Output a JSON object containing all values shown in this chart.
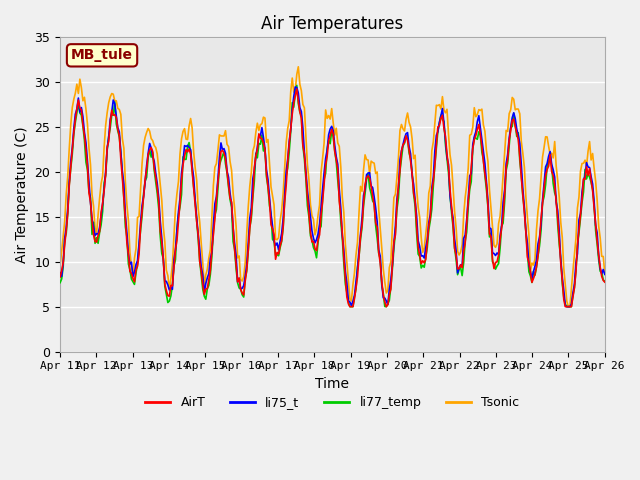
{
  "title": "Air Temperatures",
  "xlabel": "Time",
  "ylabel": "Air Temperature (C)",
  "ylim": [
    0,
    35
  ],
  "yticks": [
    0,
    5,
    10,
    15,
    20,
    25,
    30,
    35
  ],
  "x_tick_labels": [
    "Apr 11",
    "Apr 12",
    "Apr 13",
    "Apr 14",
    "Apr 15",
    "Apr 16",
    "Apr 17",
    "Apr 18",
    "Apr 19",
    "Apr 20",
    "Apr 21",
    "Apr 22",
    "Apr 23",
    "Apr 24",
    "Apr 25",
    "Apr 26"
  ],
  "series_colors": {
    "AirT": "#ff0000",
    "li75_t": "#0000ff",
    "li77_temp": "#00cc00",
    "Tsonic": "#ffa500"
  },
  "annotation_text": "MB_tule",
  "annotation_color": "#8b0000",
  "annotation_bg": "#ffffcc",
  "bg_color": "#e8e8e8",
  "plot_bg": "#f0f0f0",
  "grid_color": "#ffffff",
  "legend_pos": "lower center",
  "n_points": 360,
  "start_day": 11,
  "end_day": 26
}
